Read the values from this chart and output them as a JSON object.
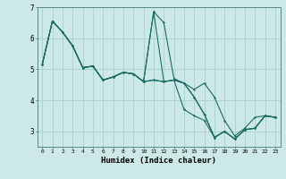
{
  "xlabel": "Humidex (Indice chaleur)",
  "ylabel": "",
  "background_color": "#cce9e7",
  "grid_color": "#aed4d1",
  "line_color": "#1a6b65",
  "xlim": [
    -0.5,
    23.5
  ],
  "ylim": [
    2.5,
    7.0
  ],
  "yticks": [
    3,
    4,
    5,
    6,
    7
  ],
  "xticks": [
    0,
    1,
    2,
    3,
    4,
    5,
    6,
    7,
    8,
    9,
    10,
    11,
    12,
    13,
    14,
    15,
    16,
    17,
    18,
    19,
    20,
    21,
    22,
    23
  ],
  "lines": [
    [
      5.15,
      6.55,
      6.2,
      5.75,
      5.05,
      5.1,
      4.65,
      4.75,
      4.9,
      4.85,
      4.6,
      6.85,
      6.5,
      4.7,
      4.55,
      4.35,
      4.55,
      4.1,
      3.35,
      2.85,
      3.1,
      3.45,
      3.5,
      3.45
    ],
    [
      5.15,
      6.55,
      6.2,
      5.75,
      5.05,
      5.1,
      4.65,
      4.75,
      4.9,
      4.85,
      4.6,
      6.85,
      4.6,
      4.65,
      4.55,
      4.1,
      3.55,
      2.8,
      3.0,
      2.75,
      3.05,
      3.1,
      3.5,
      3.45
    ],
    [
      5.15,
      6.55,
      6.2,
      5.75,
      5.05,
      5.1,
      4.65,
      4.75,
      4.9,
      4.85,
      4.6,
      4.65,
      4.6,
      4.65,
      4.55,
      4.1,
      3.55,
      2.8,
      3.0,
      2.75,
      3.05,
      3.1,
      3.5,
      3.45
    ],
    [
      5.15,
      6.55,
      6.2,
      5.75,
      5.05,
      5.1,
      4.65,
      4.75,
      4.9,
      4.85,
      4.6,
      4.65,
      4.6,
      4.65,
      3.7,
      3.5,
      3.35,
      2.8,
      3.0,
      2.75,
      3.05,
      3.1,
      3.5,
      3.45
    ]
  ]
}
